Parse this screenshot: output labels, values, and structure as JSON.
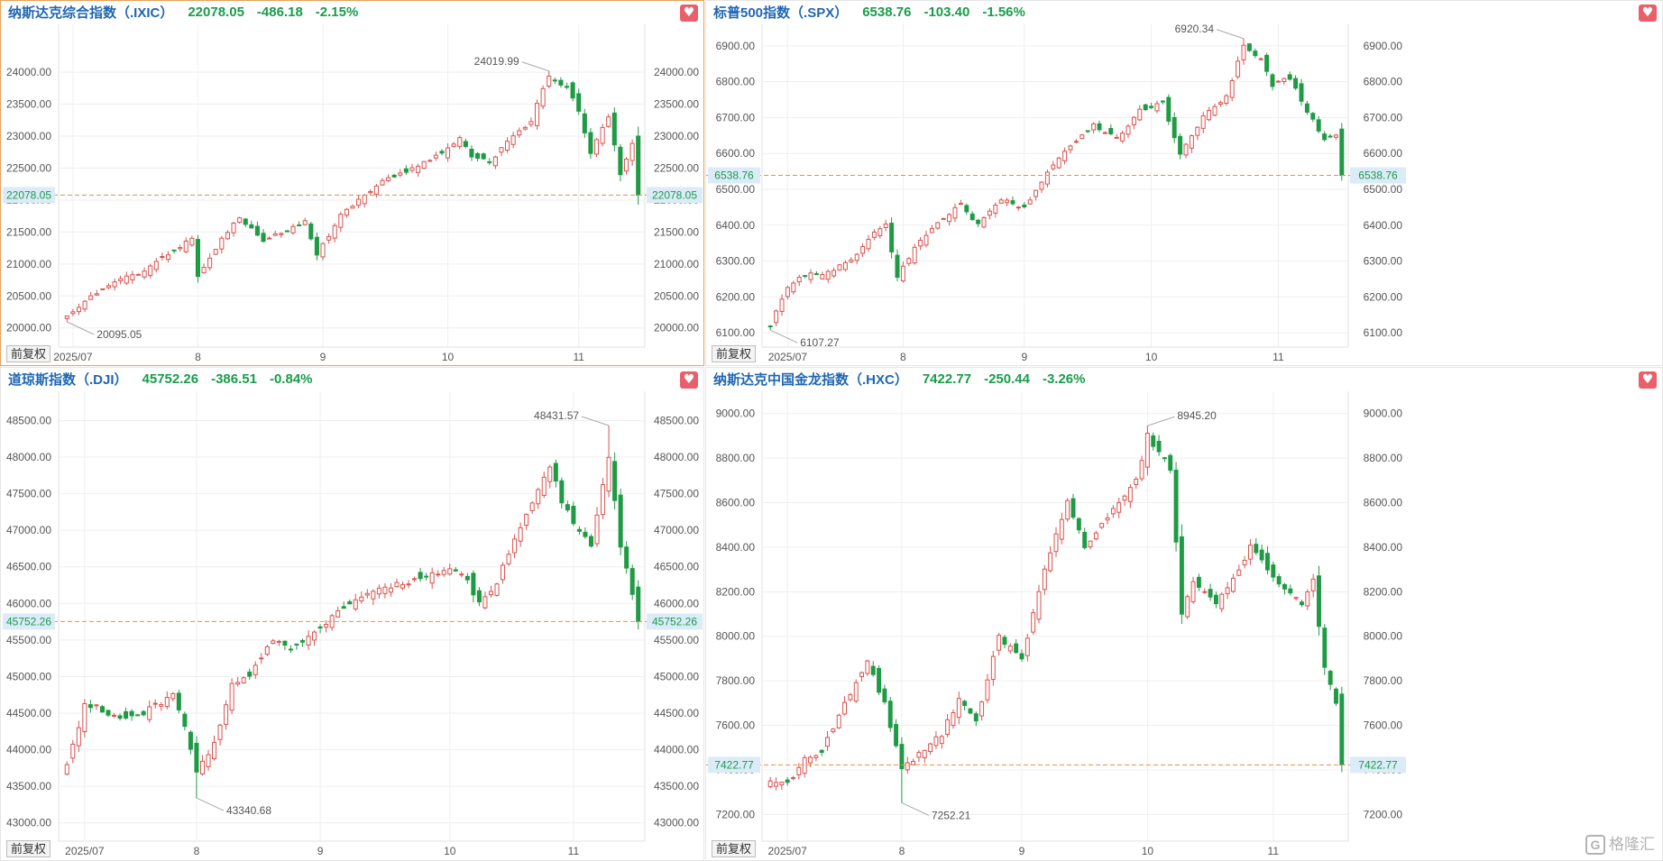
{
  "colors": {
    "up": "#d9534f",
    "down": "#1f9a45",
    "title": "#1f66b3",
    "quote": "#1a9b4b",
    "price_line": "#e88f4a",
    "price_label_bg": "#dcebf8",
    "axis_text": "#555555",
    "grid": "#efefef",
    "heart": "#e95f6b"
  },
  "icons": {
    "favorite": "heart-icon",
    "watermark_logo": "gelonghui-logo"
  },
  "watermark_text": "格隆汇",
  "watermark_logo_char": "G",
  "panels": [
    {
      "id": "ixic",
      "name": "纳斯达克综合指数（.IXIC）",
      "price": "22078.05",
      "change": "-486.18",
      "pct": "-2.15%",
      "fuquan": "前复权",
      "last_label": "22078.05",
      "high_label": "24019.99",
      "low_label": "20095.05",
      "chart_data": {
        "type": "candlestick",
        "ylim": [
          19700,
          24750
        ],
        "yticks": [
          "20000.00",
          "20500.00",
          "21000.00",
          "21500.00",
          "22000.00",
          "22500.00",
          "23000.00",
          "23500.00",
          "24000.00"
        ],
        "xtick_labels": [
          "2025/07",
          "8",
          "9",
          "10",
          "11"
        ],
        "xtick_index": [
          1,
          22,
          43,
          64,
          86
        ],
        "last": 22078.05,
        "high": 24019.99,
        "high_index": 81,
        "low": 20095.05,
        "low_index": 0,
        "high_text_side": "left",
        "low_text_side": "right",
        "anchors": [
          [
            0,
            20200
          ],
          [
            4,
            20500
          ],
          [
            9,
            20750
          ],
          [
            13,
            20900
          ],
          [
            17,
            21150
          ],
          [
            21,
            21400
          ],
          [
            22,
            20800
          ],
          [
            26,
            21400
          ],
          [
            29,
            21750
          ],
          [
            33,
            21350
          ],
          [
            36,
            21500
          ],
          [
            40,
            21650
          ],
          [
            42,
            21150
          ],
          [
            46,
            21750
          ],
          [
            50,
            22100
          ],
          [
            54,
            22350
          ],
          [
            58,
            22500
          ],
          [
            62,
            22700
          ],
          [
            66,
            22950
          ],
          [
            68,
            22700
          ],
          [
            71,
            22600
          ],
          [
            74,
            22900
          ],
          [
            78,
            23250
          ],
          [
            81,
            23950
          ],
          [
            84,
            23750
          ],
          [
            86,
            23400
          ],
          [
            88,
            22750
          ],
          [
            91,
            23300
          ],
          [
            93,
            22400
          ],
          [
            95,
            22900
          ],
          [
            96,
            22078
          ]
        ]
      }
    },
    {
      "id": "spx",
      "name": "标普500指数（.SPX）",
      "price": "6538.76",
      "change": "-103.40",
      "pct": "-1.56%",
      "fuquan": "前复权",
      "last_label": "6538.76",
      "high_label": "6920.34",
      "low_label": "6107.27",
      "chart_data": {
        "type": "candlestick",
        "ylim": [
          6060,
          6960
        ],
        "yticks": [
          "6100.00",
          "6200.00",
          "6300.00",
          "6400.00",
          "6500.00",
          "6600.00",
          "6700.00",
          "6800.00",
          "6900.00"
        ],
        "xtick_labels": [
          "2025/07",
          "8",
          "9",
          "10",
          "11"
        ],
        "xtick_index": [
          3,
          23,
          44,
          66,
          88
        ],
        "last": 6538.76,
        "high": 6920.34,
        "high_index": 82,
        "low": 6107.27,
        "low_index": 0,
        "high_text_side": "left",
        "low_text_side": "right",
        "anchors": [
          [
            0,
            6120
          ],
          [
            3,
            6230
          ],
          [
            6,
            6260
          ],
          [
            10,
            6270
          ],
          [
            14,
            6300
          ],
          [
            18,
            6380
          ],
          [
            20,
            6400
          ],
          [
            22,
            6260
          ],
          [
            26,
            6360
          ],
          [
            30,
            6420
          ],
          [
            33,
            6460
          ],
          [
            36,
            6400
          ],
          [
            40,
            6470
          ],
          [
            44,
            6450
          ],
          [
            48,
            6550
          ],
          [
            52,
            6620
          ],
          [
            56,
            6680
          ],
          [
            60,
            6640
          ],
          [
            64,
            6720
          ],
          [
            68,
            6740
          ],
          [
            71,
            6600
          ],
          [
            75,
            6700
          ],
          [
            79,
            6760
          ],
          [
            82,
            6900
          ],
          [
            85,
            6860
          ],
          [
            87,
            6790
          ],
          [
            90,
            6810
          ],
          [
            93,
            6720
          ],
          [
            96,
            6640
          ],
          [
            98,
            6650
          ],
          [
            99,
            6539
          ]
        ]
      }
    },
    {
      "id": "dji",
      "name": "道琼斯指数（.DJI）",
      "price": "45752.26",
      "change": "-386.51",
      "pct": "-0.84%",
      "fuquan": "前复权",
      "last_label": "45752.26",
      "high_label": "48431.57",
      "low_label": "43340.68",
      "chart_data": {
        "type": "candlestick",
        "ylim": [
          42750,
          48900
        ],
        "yticks": [
          "43000.00",
          "43500.00",
          "44000.00",
          "44500.00",
          "45000.00",
          "45500.00",
          "46000.00",
          "46500.00",
          "47000.00",
          "47500.00",
          "48000.00",
          "48500.00"
        ],
        "xtick_labels": [
          "2025/07",
          "8",
          "9",
          "10",
          "11"
        ],
        "xtick_index": [
          3,
          22,
          43,
          65,
          86
        ],
        "last": 45752.26,
        "high": 48431.57,
        "high_index": 92,
        "low": 43340.68,
        "low_index": 22,
        "high_text_side": "left",
        "low_text_side": "right",
        "anchors": [
          [
            0,
            43800
          ],
          [
            3,
            44600
          ],
          [
            5,
            44600
          ],
          [
            8,
            44450
          ],
          [
            12,
            44450
          ],
          [
            15,
            44600
          ],
          [
            18,
            44750
          ],
          [
            20,
            44300
          ],
          [
            22,
            43700
          ],
          [
            25,
            44100
          ],
          [
            28,
            44900
          ],
          [
            31,
            45000
          ],
          [
            35,
            45500
          ],
          [
            38,
            45400
          ],
          [
            42,
            45600
          ],
          [
            46,
            45900
          ],
          [
            50,
            46100
          ],
          [
            54,
            46200
          ],
          [
            58,
            46300
          ],
          [
            62,
            46400
          ],
          [
            65,
            46500
          ],
          [
            68,
            46300
          ],
          [
            70,
            46000
          ],
          [
            73,
            46300
          ],
          [
            76,
            46900
          ],
          [
            79,
            47400
          ],
          [
            82,
            47900
          ],
          [
            84,
            47400
          ],
          [
            86,
            47100
          ],
          [
            89,
            46800
          ],
          [
            92,
            48000
          ],
          [
            94,
            46800
          ],
          [
            96,
            46100
          ],
          [
            97,
            45752
          ]
        ]
      }
    },
    {
      "id": "hxc",
      "name": "纳斯达克中国金龙指数（.HXC）",
      "price": "7422.77",
      "change": "-250.44",
      "pct": "-3.26%",
      "fuquan": "前复权",
      "last_label": "7422.77",
      "high_label": "8945.20",
      "low_label": "7252.21",
      "chart_data": {
        "type": "candlestick",
        "ylim": [
          7080,
          9100
        ],
        "yticks": [
          "7200.00",
          "7400.00",
          "7600.00",
          "7800.00",
          "8000.00",
          "8200.00",
          "8400.00",
          "8600.00",
          "8800.00",
          "9000.00"
        ],
        "xtick_labels": [
          "2025/07",
          "8",
          "9",
          "10",
          "11"
        ],
        "xtick_index": [
          3,
          23,
          44,
          66,
          88
        ],
        "last": 7422.77,
        "high": 8945.2,
        "high_index": 66,
        "low": 7252.21,
        "low_index": 23,
        "high_text_side": "right",
        "low_text_side": "right",
        "anchors": [
          [
            0,
            7350
          ],
          [
            3,
            7340
          ],
          [
            6,
            7450
          ],
          [
            9,
            7480
          ],
          [
            13,
            7700
          ],
          [
            17,
            7880
          ],
          [
            20,
            7700
          ],
          [
            23,
            7400
          ],
          [
            26,
            7470
          ],
          [
            30,
            7560
          ],
          [
            33,
            7720
          ],
          [
            36,
            7620
          ],
          [
            40,
            8000
          ],
          [
            44,
            7900
          ],
          [
            48,
            8300
          ],
          [
            52,
            8600
          ],
          [
            55,
            8400
          ],
          [
            58,
            8500
          ],
          [
            61,
            8600
          ],
          [
            64,
            8700
          ],
          [
            66,
            8900
          ],
          [
            70,
            8750
          ],
          [
            72,
            8100
          ],
          [
            74,
            8250
          ],
          [
            78,
            8150
          ],
          [
            81,
            8250
          ],
          [
            84,
            8400
          ],
          [
            87,
            8300
          ],
          [
            90,
            8200
          ],
          [
            93,
            8150
          ],
          [
            95,
            8250
          ],
          [
            97,
            7850
          ],
          [
            99,
            7700
          ],
          [
            100,
            7423
          ]
        ]
      }
    }
  ]
}
